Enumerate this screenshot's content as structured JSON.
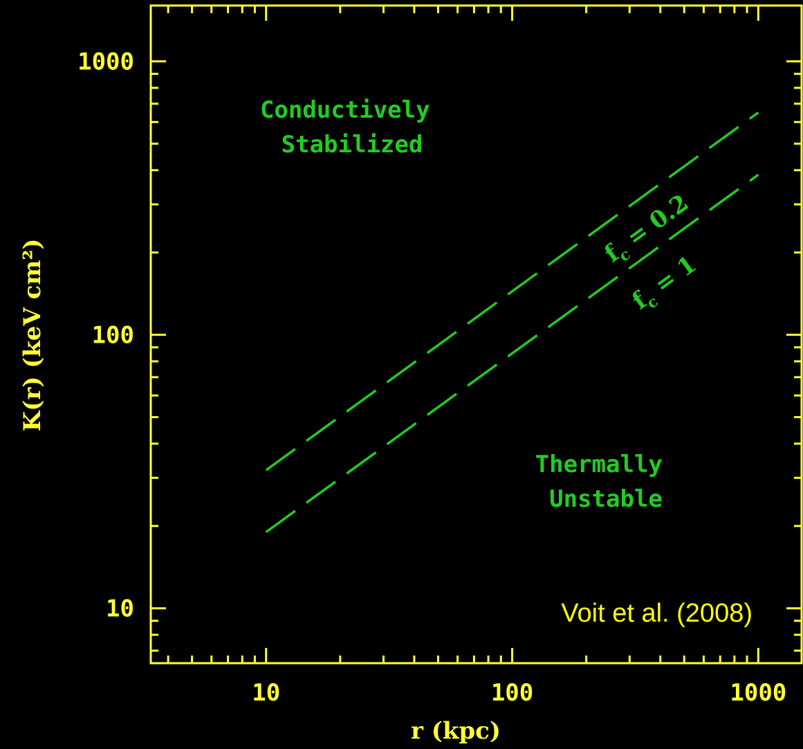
{
  "chart_data": {
    "type": "line",
    "xlabel": "r   (kpc)",
    "ylabel": "K(r)   (keV cm²)",
    "xscale": "log",
    "yscale": "log",
    "xlim": [
      3.4,
      1500
    ],
    "ylim": [
      6.3,
      1600
    ],
    "x_ticks": [
      10,
      100,
      1000
    ],
    "x_tick_labels": [
      "10",
      "100",
      "1000"
    ],
    "y_ticks": [
      10,
      100,
      1000
    ],
    "y_tick_labels": [
      "10",
      "100",
      "1000"
    ],
    "grid": false,
    "series": [
      {
        "name": "f_c = 0.2",
        "label_parts": {
          "symbol": "f",
          "subscript": "c",
          "rest": " = 0.2"
        },
        "style": "dashed",
        "x": [
          10,
          1000
        ],
        "y": [
          32,
          650
        ]
      },
      {
        "name": "f_c = 1",
        "label_parts": {
          "symbol": "f",
          "subscript": "c",
          "rest": " = 1"
        },
        "style": "dashed",
        "x": [
          10,
          1000
        ],
        "y": [
          19,
          385
        ]
      }
    ],
    "annotations": [
      {
        "lines": [
          "Conductively",
          "Stabilized"
        ]
      },
      {
        "lines": [
          "Thermally",
          "Unstable"
        ]
      }
    ],
    "citation": "Voit et al. (2008)",
    "colors": {
      "axes": "#ffff33",
      "curves": "#22cc22",
      "citation": "#ffff00",
      "background": "#000000"
    }
  }
}
